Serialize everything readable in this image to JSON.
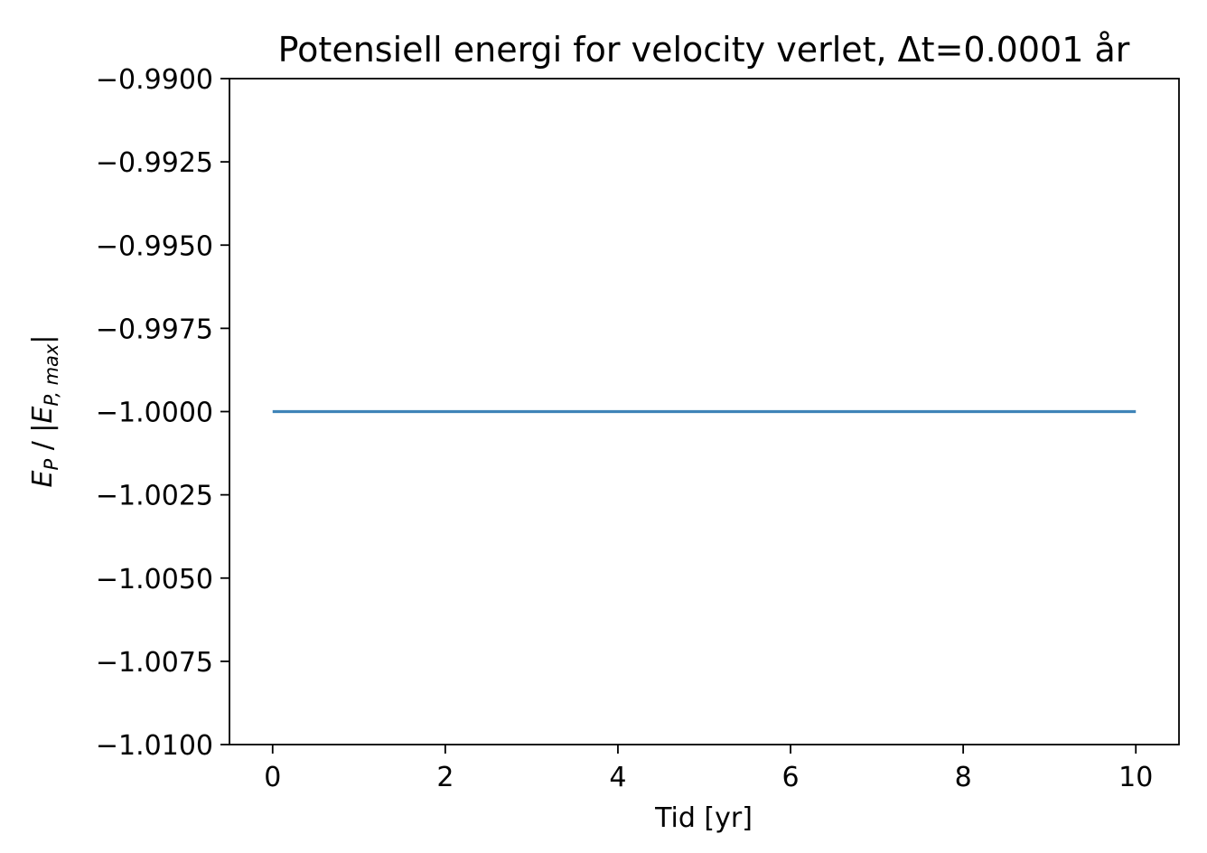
{
  "chart_data": {
    "type": "line",
    "title": "Potensiell energi for velocity verlet, Δt=0.0001 år",
    "xlabel": "Tid [yr]",
    "ylabel": {
      "main": "E",
      "sub": "P",
      "sep": " / |",
      "main2": "E",
      "sub2": "P, max",
      "end": "|"
    },
    "xlim": [
      -0.5,
      10.5
    ],
    "ylim": [
      -1.01,
      -0.99
    ],
    "xticks": [
      0,
      2,
      4,
      6,
      8,
      10
    ],
    "xtick_labels": [
      "0",
      "2",
      "4",
      "6",
      "8",
      "10"
    ],
    "yticks": [
      -0.99,
      -0.9925,
      -0.995,
      -0.9975,
      -1.0,
      -1.0025,
      -1.005,
      -1.0075,
      -1.01
    ],
    "ytick_labels": [
      "−0.9900",
      "−0.9925",
      "−0.9950",
      "−0.9975",
      "−1.0000",
      "−1.0025",
      "−1.0050",
      "−1.0075",
      "−1.0100"
    ],
    "grid": false,
    "series": [
      {
        "color": "#3f84b8",
        "x": [
          0,
          1,
          2,
          3,
          4,
          5,
          6,
          7,
          8,
          9,
          10
        ],
        "y": [
          -1.0,
          -1.0,
          -1.0,
          -1.0,
          -1.0,
          -1.0,
          -1.0,
          -1.0,
          -1.0,
          -1.0,
          -1.0
        ]
      }
    ]
  }
}
